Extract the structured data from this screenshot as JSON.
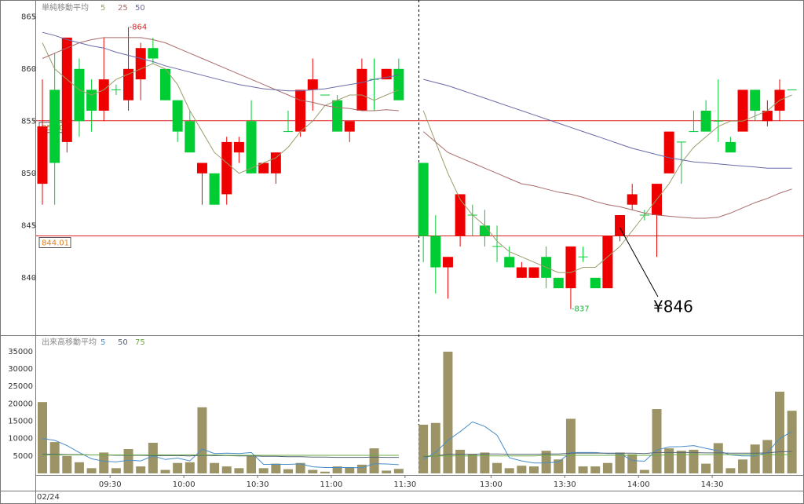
{
  "chart_data": [
    {
      "type": "candlestick",
      "legend_title": "単純移動平均",
      "open": [
        849,
        858,
        853,
        860,
        858,
        856,
        858,
        857,
        859,
        862,
        860,
        857,
        855,
        850,
        850,
        848,
        852,
        855,
        850,
        850,
        854,
        854,
        858,
        857.5,
        857,
        854,
        856,
        859,
        859,
        860,
        null,
        851,
        844,
        841,
        844,
        846,
        845,
        843,
        842,
        840,
        840,
        842,
        840,
        839,
        842,
        840,
        839,
        844,
        847,
        846,
        846,
        850,
        853,
        854,
        856,
        855,
        853,
        854,
        858,
        855,
        856,
        858
      ],
      "high": [
        859,
        861.5,
        863,
        861,
        859,
        863,
        858.5,
        864,
        862.5,
        863,
        860,
        857,
        856,
        851,
        850,
        853.5,
        853.5,
        857,
        851,
        852,
        856,
        858,
        861,
        857.5,
        857.5,
        855,
        861,
        861,
        860,
        861,
        null,
        851,
        846,
        842,
        848,
        847,
        846.5,
        845,
        843,
        841.5,
        841,
        843,
        840,
        843,
        843,
        840,
        844,
        846,
        849,
        846.5,
        849,
        854,
        853,
        856,
        857,
        859,
        853.5,
        858,
        858,
        857,
        859,
        858
      ],
      "low": [
        847,
        847,
        852,
        853.5,
        854,
        855,
        857.5,
        856,
        857,
        860.5,
        857,
        853,
        852,
        847,
        847,
        847,
        851,
        850,
        850,
        849,
        854,
        853.5,
        856,
        857.5,
        854,
        853,
        856,
        856,
        859,
        857,
        null,
        841.5,
        838.5,
        838,
        843,
        844,
        843,
        841.5,
        841,
        840,
        840,
        839,
        839,
        837,
        841.5,
        839,
        839,
        843.5,
        846.5,
        845.5,
        842,
        850,
        849,
        854,
        854,
        853,
        852,
        854,
        855,
        854.5,
        855,
        858
      ],
      "close": [
        854.5,
        851,
        863,
        855,
        856,
        859,
        858,
        860,
        862,
        861,
        857,
        854,
        852,
        851,
        847,
        853,
        853,
        850,
        851,
        852,
        854,
        858,
        859,
        857.5,
        854,
        855,
        860,
        859,
        860,
        857,
        null,
        844,
        841,
        842,
        848,
        846,
        844,
        843,
        841,
        841,
        841,
        840,
        839,
        843,
        842,
        839,
        844,
        846,
        848,
        846,
        849,
        854,
        853,
        854,
        854,
        855,
        852,
        858,
        856,
        856,
        858,
        858
      ],
      "up_color": "#ee0000",
      "down_color": "#00cc33",
      "series": [
        {
          "name": "5",
          "color": "#9c9c6a",
          "values": [
            862.5,
            860,
            859,
            858,
            857.5,
            858,
            859,
            859.5,
            860,
            860.5,
            860,
            858.5,
            856,
            854,
            852,
            851,
            850,
            850.5,
            851,
            851.5,
            852.5,
            854,
            855,
            856.5,
            857,
            857.5,
            857.5,
            857,
            857.5,
            858,
            null,
            856,
            853,
            850,
            847.5,
            846,
            845,
            843.5,
            842.5,
            842,
            841.5,
            841,
            840.5,
            840.5,
            841,
            841,
            842,
            843,
            844.5,
            846,
            847.5,
            849,
            851,
            852.5,
            853.5,
            854.5,
            855,
            855,
            855.5,
            856,
            857,
            857.5
          ]
        },
        {
          "name": "25",
          "color": "#a86a6a",
          "values": [
            861,
            861.5,
            862,
            862.5,
            862.8,
            863,
            863,
            863,
            863,
            862.8,
            862.5,
            862,
            861.5,
            861,
            860.5,
            860,
            859.5,
            859,
            858.5,
            858,
            857.5,
            857,
            856.8,
            856.5,
            856.3,
            856.2,
            856,
            856,
            856.1,
            856,
            null,
            854,
            853,
            852,
            851.5,
            851,
            850.5,
            850,
            849.5,
            849,
            848.8,
            848.5,
            848.2,
            848,
            847.7,
            847.3,
            847,
            846.8,
            846.5,
            846.2,
            846,
            845.9,
            845.8,
            845.7,
            845.7,
            845.8,
            846.2,
            846.7,
            847.2,
            847.6,
            848.1,
            848.5
          ]
        },
        {
          "name": "50",
          "color": "#6a6aa8",
          "values": [
            863.5,
            863.2,
            862.8,
            862.5,
            862.2,
            862,
            861.6,
            861.3,
            861,
            860.7,
            860.3,
            860,
            859.7,
            859.4,
            859.1,
            858.8,
            858.5,
            858.3,
            858.1,
            858,
            857.9,
            857.9,
            858,
            858.1,
            858.3,
            858.5,
            858.7,
            859,
            859.2,
            859.4,
            null,
            859,
            858.7,
            858.4,
            858,
            857.6,
            857.2,
            856.8,
            856.4,
            856,
            855.6,
            855.2,
            854.8,
            854.4,
            854,
            853.6,
            853.2,
            852.8,
            852.4,
            852.1,
            851.8,
            851.5,
            851.3,
            851.1,
            851,
            850.9,
            850.8,
            850.7,
            850.6,
            850.5,
            850.5,
            850.5
          ]
        }
      ],
      "ylim": [
        834.5,
        866.6
      ],
      "yticks": [
        840,
        845,
        850,
        855,
        860,
        865
      ],
      "reference_lines": [
        {
          "value": 855.04,
          "color": "#dd2222"
        },
        {
          "value": 844.01,
          "color": "#dd2222"
        }
      ],
      "high_label": {
        "value": 864,
        "label": "-864"
      },
      "low_label": {
        "value": 837,
        "label": "-837"
      },
      "callout": {
        "value": 846,
        "label": "¥846"
      }
    },
    {
      "type": "bar",
      "legend_title": "出来高移動平均",
      "date_label": "02/24",
      "categories": [
        null,
        null,
        null,
        null,
        null,
        "09:30",
        null,
        null,
        null,
        null,
        null,
        "10:00",
        null,
        null,
        null,
        null,
        null,
        "10:30",
        null,
        null,
        null,
        null,
        null,
        "11:00",
        null,
        null,
        null,
        null,
        null,
        "11:30",
        null,
        null,
        null,
        null,
        null,
        null,
        "13:00",
        null,
        null,
        null,
        null,
        null,
        "13:30",
        null,
        null,
        null,
        null,
        null,
        "14:00",
        null,
        null,
        null,
        null,
        null,
        "14:30",
        null,
        null,
        null,
        null,
        null,
        null,
        null
      ],
      "values": [
        20500,
        9000,
        5000,
        3200,
        1500,
        6000,
        1500,
        7000,
        2000,
        8800,
        1000,
        3000,
        3200,
        19000,
        3000,
        2000,
        1500,
        5000,
        1500,
        2800,
        1200,
        3000,
        1000,
        500,
        2000,
        1800,
        2500,
        7200,
        800,
        1300,
        null,
        14000,
        14500,
        35000,
        6800,
        5500,
        6000,
        3000,
        1500,
        2200,
        2000,
        6500,
        4000,
        15700,
        2000,
        2000,
        3000,
        6000,
        5500,
        1000,
        18500,
        7200,
        6500,
        6800,
        2800,
        8700,
        1500,
        4000,
        8300,
        9600,
        23500,
        18000
      ],
      "color": "#9c9466",
      "series": [
        {
          "name": "5",
          "color": "#4a8cc8",
          "values": [
            10000,
            9500,
            8000,
            6000,
            4200,
            3500,
            3300,
            3800,
            3600,
            5000,
            4000,
            4400,
            3600,
            7000,
            5700,
            5800,
            5700,
            6000,
            2600,
            2600,
            2600,
            2700,
            1900,
            1700,
            1700,
            1700,
            1600,
            2800,
            2700,
            2500,
            null,
            4000,
            6000,
            9500,
            12000,
            14800,
            13500,
            11000,
            4500,
            3600,
            3000,
            3000,
            3300,
            6000,
            6000,
            6000,
            5700,
            5700,
            3700,
            3500,
            6700,
            7600,
            7700,
            8000,
            7200,
            6500,
            5300,
            5000,
            5000,
            6000,
            10000,
            12000
          ]
        },
        {
          "name": "50",
          "color": "#556677",
          "values": [
            5500,
            5500,
            5400,
            5400,
            5300,
            5300,
            5200,
            5200,
            5200,
            5100,
            5100,
            5100,
            5000,
            5200,
            5100,
            5100,
            5000,
            5000,
            4900,
            4900,
            4800,
            4800,
            4700,
            4700,
            4600,
            4600,
            4600,
            4700,
            4600,
            4600,
            null,
            4800,
            5000,
            5500,
            5500,
            5500,
            5600,
            5600,
            5500,
            5500,
            5500,
            5600,
            5600,
            5800,
            5800,
            5800,
            5800,
            5800,
            5800,
            5700,
            6000,
            6000,
            6000,
            6000,
            5900,
            5900,
            5800,
            5800,
            5800,
            5900,
            6200,
            6300
          ]
        },
        {
          "name": "75",
          "color": "#6aaa44",
          "values": [
            5300,
            5300,
            5300,
            5300,
            5300,
            5300,
            5300,
            5300,
            5300,
            5300,
            5300,
            5300,
            5300,
            5300,
            5300,
            5200,
            5200,
            5200,
            5200,
            5200,
            5200,
            5200,
            5200,
            5200,
            5200,
            5200,
            5200,
            5200,
            5200,
            5200,
            null,
            5000,
            5000,
            5000,
            5000,
            5000,
            5000,
            5000,
            5000,
            5000,
            5000,
            5200,
            5200,
            5200,
            5200,
            5200,
            5200,
            5200,
            5200,
            5200,
            5200,
            5400,
            5400,
            5400,
            5400,
            5400,
            5400,
            5400,
            5400,
            5400,
            5400,
            5400
          ]
        }
      ],
      "ylim": [
        0,
        39500
      ],
      "yticks": [
        5000,
        10000,
        15000,
        20000,
        25000,
        30000,
        35000
      ]
    }
  ]
}
